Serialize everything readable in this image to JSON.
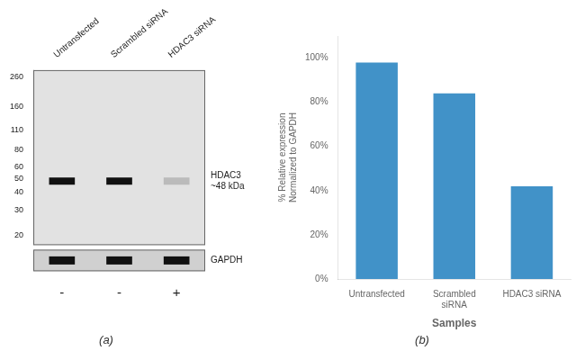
{
  "chart_data": [
    {
      "type": "western_blot",
      "subtitle": "(a)",
      "categories": [
        "Untransfected",
        "Scrambled siRNA",
        "HDAC3 siRNA"
      ],
      "log": "y",
      "ylim": [
        17,
        290
      ],
      "yticks": [
        260,
        160,
        110,
        80,
        60,
        50,
        40,
        30,
        20
      ],
      "annotations": [
        {
          "text": "HDAC3\n~48 kDa",
          "y": 48
        },
        {
          "text": "GAPDH"
        },
        {
          "text": "-",
          "x": "Untransfected"
        },
        {
          "text": "-",
          "x": "Scrambled siRNA"
        },
        {
          "text": "+",
          "x": "HDAC3 siRNA"
        }
      ],
      "grid": false
    },
    {
      "type": "bar",
      "subtitle": "(b)",
      "categories": [
        "Untransfected",
        "Scrambled\nsiRNA",
        "HDAC3 siRNA"
      ],
      "values": [
        98,
        84,
        42
      ],
      "color": "#4192C8",
      "xlabel": "Samples",
      "ylabel": "% Relative expression\nNormalized to GAPDH",
      "ylim": [
        0,
        110
      ],
      "yticks": [
        {
          "value": 0,
          "label": "0%"
        },
        {
          "value": 20,
          "label": "20%"
        },
        {
          "value": 40,
          "label": "40%"
        },
        {
          "value": 60,
          "label": "60%"
        },
        {
          "value": 80,
          "label": "80%"
        },
        {
          "value": 100,
          "label": "100%"
        }
      ],
      "grid": false
    }
  ]
}
